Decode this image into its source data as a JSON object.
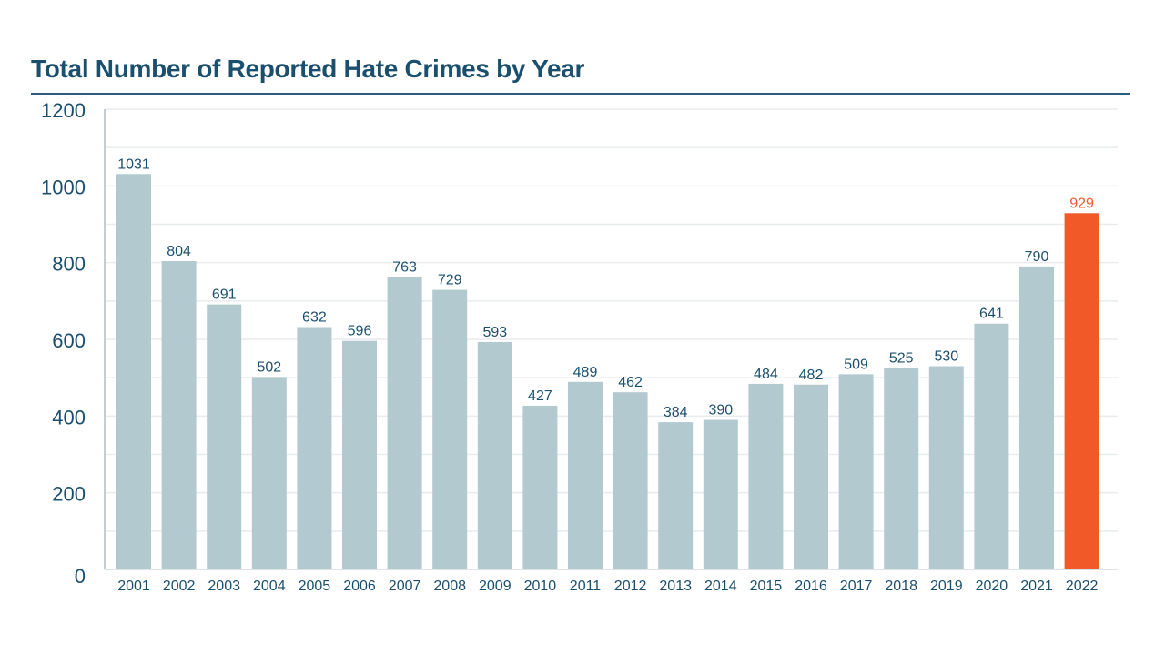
{
  "chart_data": {
    "type": "bar",
    "title": "Total Number of Reported Hate Crimes by Year",
    "xlabel": "",
    "ylabel": "",
    "ylim": [
      0,
      1200
    ],
    "yticks": [
      0,
      200,
      400,
      600,
      800,
      1000,
      1200
    ],
    "grid": true,
    "categories": [
      "2001",
      "2002",
      "2003",
      "2004",
      "2005",
      "2006",
      "2007",
      "2008",
      "2009",
      "2010",
      "2011",
      "2012",
      "2013",
      "2014",
      "2015",
      "2016",
      "2017",
      "2018",
      "2019",
      "2020",
      "2021",
      "2022"
    ],
    "values": [
      1031,
      804,
      691,
      502,
      632,
      596,
      763,
      729,
      593,
      427,
      489,
      462,
      384,
      390,
      484,
      482,
      509,
      525,
      530,
      641,
      790,
      929
    ],
    "highlight": "2022",
    "colors": {
      "bar": "#b3c9d0",
      "highlight": "#f05a28",
      "text": "#1b4f6e",
      "grid": "#e8ecee"
    }
  }
}
